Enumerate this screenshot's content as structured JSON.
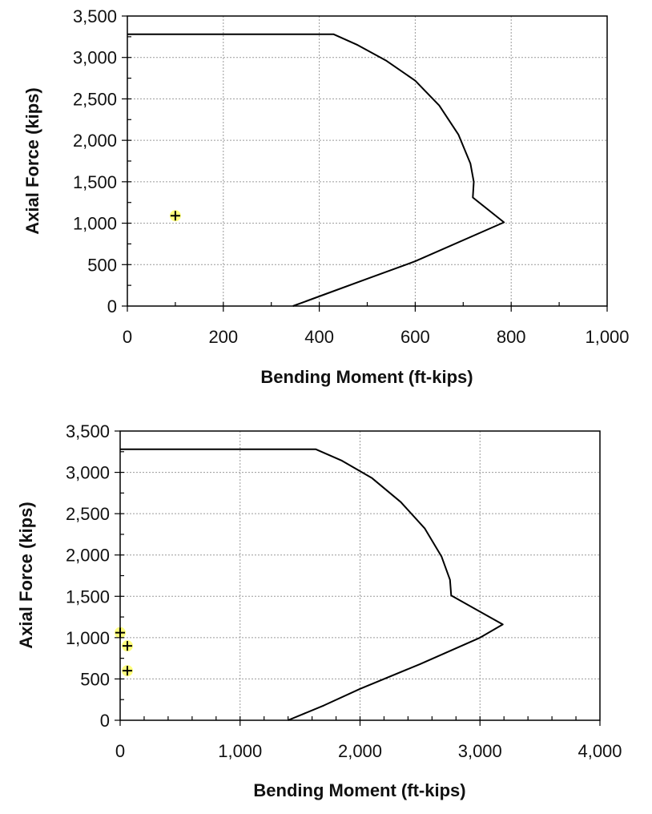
{
  "chart_data": [
    {
      "type": "line",
      "xlabel": "Bending Moment (ft-kips)",
      "ylabel": "Axial Force (kips)",
      "xlim": [
        0,
        1000
      ],
      "ylim": [
        0,
        3500
      ],
      "x_ticks": [
        "0",
        "200",
        "400",
        "600",
        "800",
        "1,000"
      ],
      "y_ticks": [
        "0",
        "500",
        "1,000",
        "1,500",
        "2,000",
        "2,500",
        "3,000",
        "3,500"
      ],
      "grid": true,
      "series": [
        {
          "points": [
            [
              0,
              3280
            ],
            [
              430,
              3280
            ],
            [
              480,
              3150
            ],
            [
              540,
              2960
            ],
            [
              600,
              2720
            ],
            [
              650,
              2420
            ],
            [
              690,
              2070
            ],
            [
              715,
              1720
            ],
            [
              722,
              1500
            ],
            [
              720,
              1310
            ],
            [
              785,
              1010
            ],
            [
              600,
              540
            ],
            [
              500,
              330
            ],
            [
              420,
              160
            ],
            [
              345,
              0
            ]
          ]
        }
      ],
      "markers": [
        {
          "x": 100,
          "y": 1090
        }
      ]
    },
    {
      "type": "line",
      "xlabel": "Bending Moment (ft-kips)",
      "ylabel": "Axial Force (kips)",
      "xlim": [
        0,
        4000
      ],
      "ylim": [
        0,
        3500
      ],
      "x_ticks": [
        "0",
        "1,000",
        "2,000",
        "3,000",
        "4,000"
      ],
      "y_ticks": [
        "0",
        "500",
        "1,000",
        "1,500",
        "2,000",
        "2,500",
        "3,000",
        "3,500"
      ],
      "grid": true,
      "series": [
        {
          "points": [
            [
              0,
              3280
            ],
            [
              1630,
              3280
            ],
            [
              1850,
              3140
            ],
            [
              2100,
              2930
            ],
            [
              2340,
              2640
            ],
            [
              2540,
              2320
            ],
            [
              2680,
              1980
            ],
            [
              2750,
              1700
            ],
            [
              2760,
              1510
            ],
            [
              3190,
              1160
            ],
            [
              3000,
              1000
            ],
            [
              2500,
              680
            ],
            [
              2000,
              380
            ],
            [
              1700,
              180
            ],
            [
              1400,
              0
            ]
          ]
        }
      ],
      "markers": [
        {
          "x": 0,
          "y": 1060
        },
        {
          "x": 60,
          "y": 900
        },
        {
          "x": 60,
          "y": 600
        }
      ]
    }
  ]
}
